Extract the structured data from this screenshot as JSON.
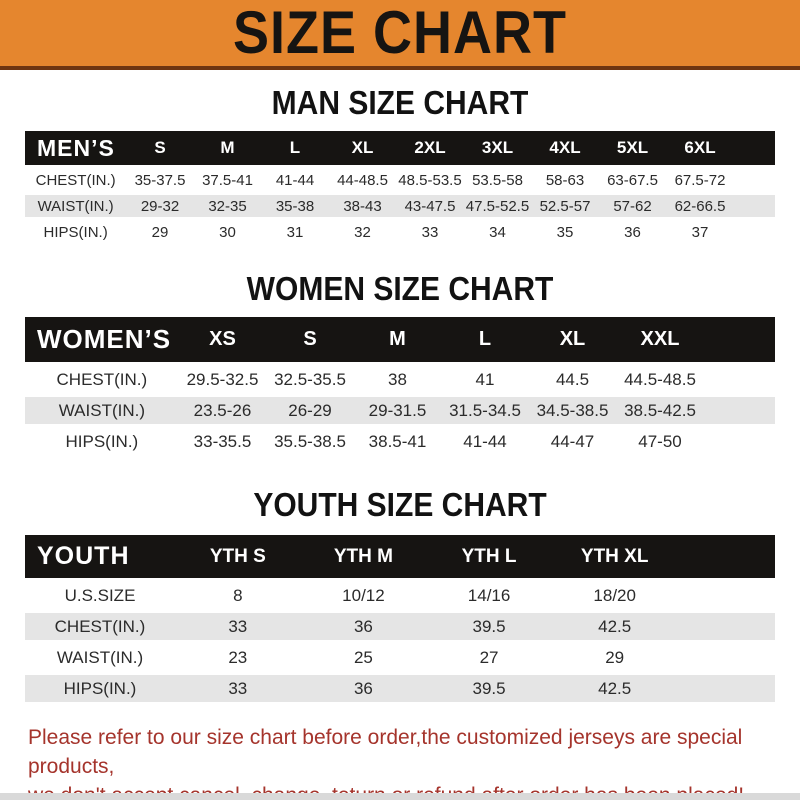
{
  "banner": {
    "title": "SIZE CHART",
    "bg_color": "#E5862E",
    "text_color": "#161412"
  },
  "sections": [
    {
      "name": "man-size-chart",
      "title": "MAN SIZE CHART",
      "corner_label": "MEN’S",
      "columns": [
        "S",
        "M",
        "L",
        "XL",
        "2XL",
        "3XL",
        "4XL",
        "5XL",
        "6XL"
      ],
      "rows": [
        {
          "label": "CHEST(IN.)",
          "values": [
            "35-37.5",
            "37.5-41",
            "41-44",
            "44-48.5",
            "48.5-53.5",
            "53.5-58",
            "58-63",
            "63-67.5",
            "67.5-72"
          ]
        },
        {
          "label": "WAIST(IN.)",
          "values": [
            "29-32",
            "32-35",
            "35-38",
            "38-43",
            "43-47.5",
            "47.5-52.5",
            "52.5-57",
            "57-62",
            "62-66.5"
          ]
        },
        {
          "label": "HIPS(IN.)",
          "values": [
            "29",
            "30",
            "31",
            "32",
            "33",
            "34",
            "35",
            "36",
            "37"
          ]
        }
      ]
    },
    {
      "name": "women-size-chart",
      "title": "WOMEN SIZE CHART",
      "corner_label": "WOMEN’S",
      "columns": [
        "XS",
        "S",
        "M",
        "L",
        "XL",
        "XXL"
      ],
      "rows": [
        {
          "label": "CHEST(IN.)",
          "values": [
            "29.5-32.5",
            "32.5-35.5",
            "38",
            "41",
            "44.5",
            "44.5-48.5"
          ]
        },
        {
          "label": "WAIST(IN.)",
          "values": [
            "23.5-26",
            "26-29",
            "29-31.5",
            "31.5-34.5",
            "34.5-38.5",
            "38.5-42.5"
          ]
        },
        {
          "label": "HIPS(IN.)",
          "values": [
            "33-35.5",
            "35.5-38.5",
            "38.5-41",
            "41-44",
            "44-47",
            "47-50"
          ]
        }
      ]
    },
    {
      "name": "youth-size-chart",
      "title": "YOUTH SIZE CHART",
      "corner_label": "YOUTH",
      "columns": [
        "YTH S",
        "YTH M",
        "YTH L",
        "YTH XL"
      ],
      "rows": [
        {
          "label": "U.S.SIZE",
          "values": [
            "8",
            "10/12",
            "14/16",
            "18/20"
          ]
        },
        {
          "label": "CHEST(IN.)",
          "values": [
            "33",
            "36",
            "39.5",
            "42.5"
          ]
        },
        {
          "label": "WAIST(IN.)",
          "values": [
            "23",
            "25",
            "27",
            "29"
          ]
        },
        {
          "label": "HIPS(IN.)",
          "values": [
            "33",
            "36",
            "39.5",
            "42.5"
          ]
        }
      ]
    }
  ],
  "footer": {
    "line1": "Please refer to our size chart before order,the customized jerseys are special products,",
    "line2": "we don't accept cancel, change, teturn or refund after order has been placed!",
    "text_color": "#A5342C"
  }
}
